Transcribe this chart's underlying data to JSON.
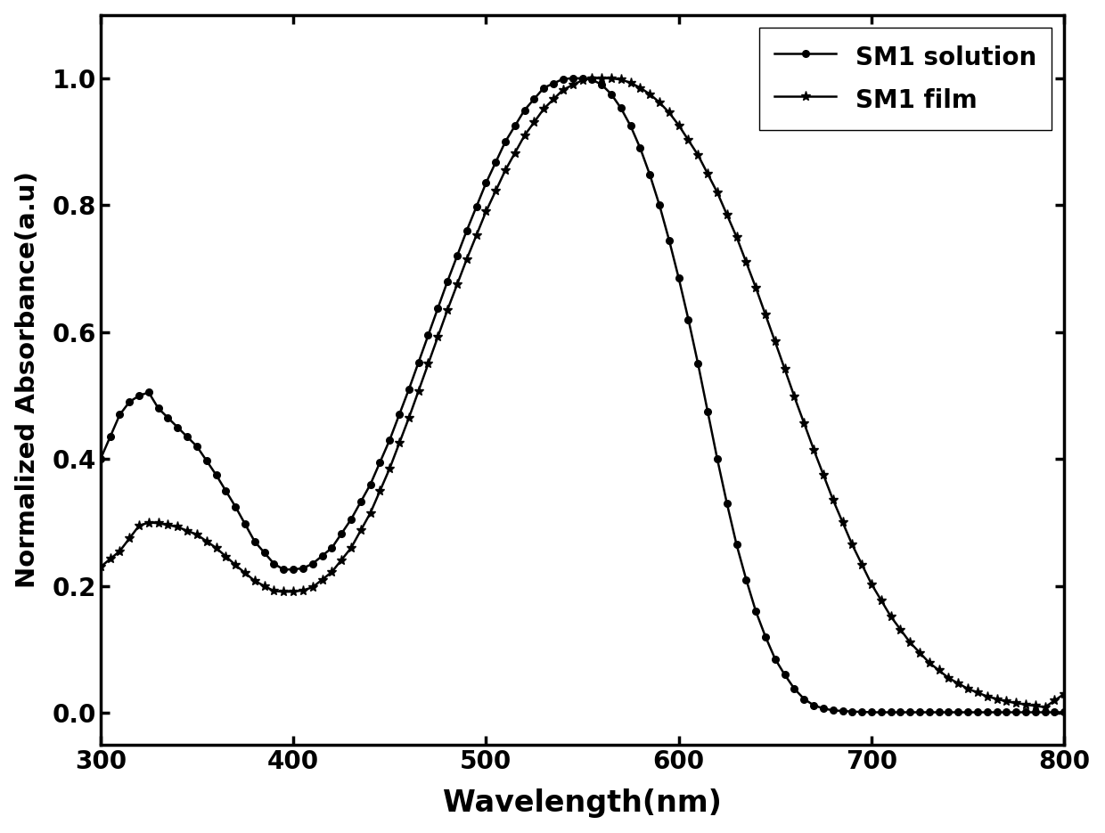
{
  "title": "",
  "xlabel": "Wavelength(nm)",
  "ylabel": "Normalized Absorbance(a.u)",
  "xlim": [
    300,
    800
  ],
  "ylim": [
    -0.05,
    1.1
  ],
  "xticks": [
    300,
    400,
    500,
    600,
    700,
    800
  ],
  "yticks": [
    0.0,
    0.2,
    0.4,
    0.6,
    0.8,
    1.0
  ],
  "background_color": "#ffffff",
  "legend_labels": [
    "SM1 solution",
    "SM1 film"
  ]
}
